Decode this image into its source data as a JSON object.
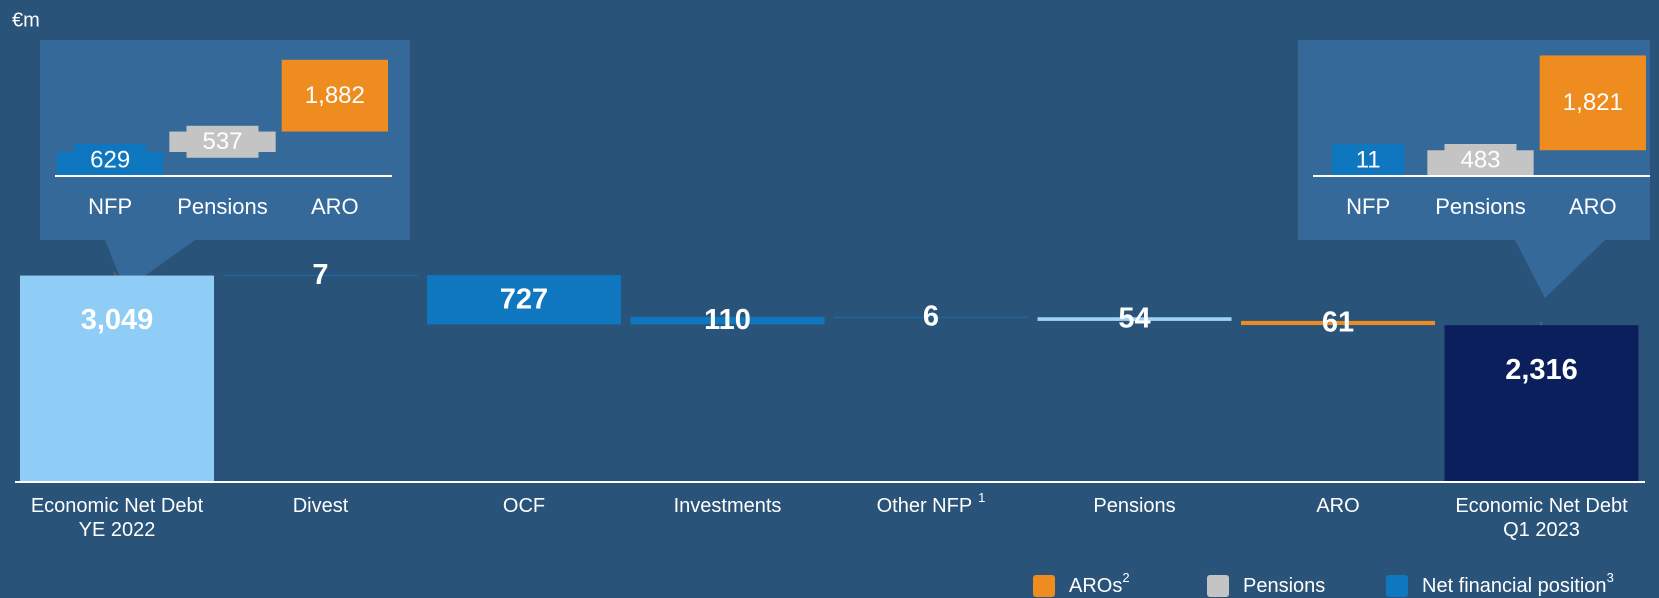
{
  "chart_data": {
    "type": "waterfall",
    "unit_label": "€m",
    "categories": [
      [
        "Economic Net Debt",
        "YE 2022"
      ],
      [
        "Divest"
      ],
      [
        "OCF"
      ],
      [
        "Investments"
      ],
      [
        "Other NFP"
      ],
      [
        "Pensions"
      ],
      [
        "ARO"
      ],
      [
        "Economic Net Debt",
        "Q1 2023"
      ]
    ],
    "category_notes": [
      null,
      null,
      null,
      null,
      "1",
      null,
      null,
      null
    ],
    "values": [
      3049,
      7,
      -727,
      110,
      -6,
      -54,
      -61,
      2316
    ],
    "value_labels": [
      "3,049",
      "7",
      "727",
      "110",
      "6",
      "54",
      "61",
      "2,316"
    ],
    "colors": [
      "#90cdf6",
      "#0f77bf",
      "#0f77bf",
      "#0f77bf",
      "#0f77bf",
      "#9fd2f7",
      "#ef8c1f",
      "#0a1f5c"
    ],
    "ylim": [
      0,
      3500
    ],
    "legend": [
      {
        "name": "AROs",
        "note": "2",
        "color": "#ef8c1f"
      },
      {
        "name": "Pensions",
        "note": null,
        "color": "#c4c4c4"
      },
      {
        "name": "Net financial position",
        "note": "3",
        "color": "#0f77bf"
      }
    ],
    "insets": [
      {
        "categories": [
          "NFP",
          "Pensions",
          "ARO"
        ],
        "values": [
          629,
          537,
          1882
        ],
        "value_labels": [
          "629",
          "537",
          "1,882"
        ],
        "colors": [
          "#0f77bf",
          "#c4c4c4",
          "#ef8c1f"
        ],
        "ylim": [
          0,
          3200
        ]
      },
      {
        "categories": [
          "NFP",
          "Pensions",
          "ARO"
        ],
        "values": [
          11,
          483,
          1821
        ],
        "value_labels": [
          "11",
          "483",
          "1,821"
        ],
        "colors": [
          "#0f77bf",
          "#c4c4c4",
          "#ef8c1f"
        ],
        "ylim": [
          0,
          2400
        ]
      }
    ]
  }
}
